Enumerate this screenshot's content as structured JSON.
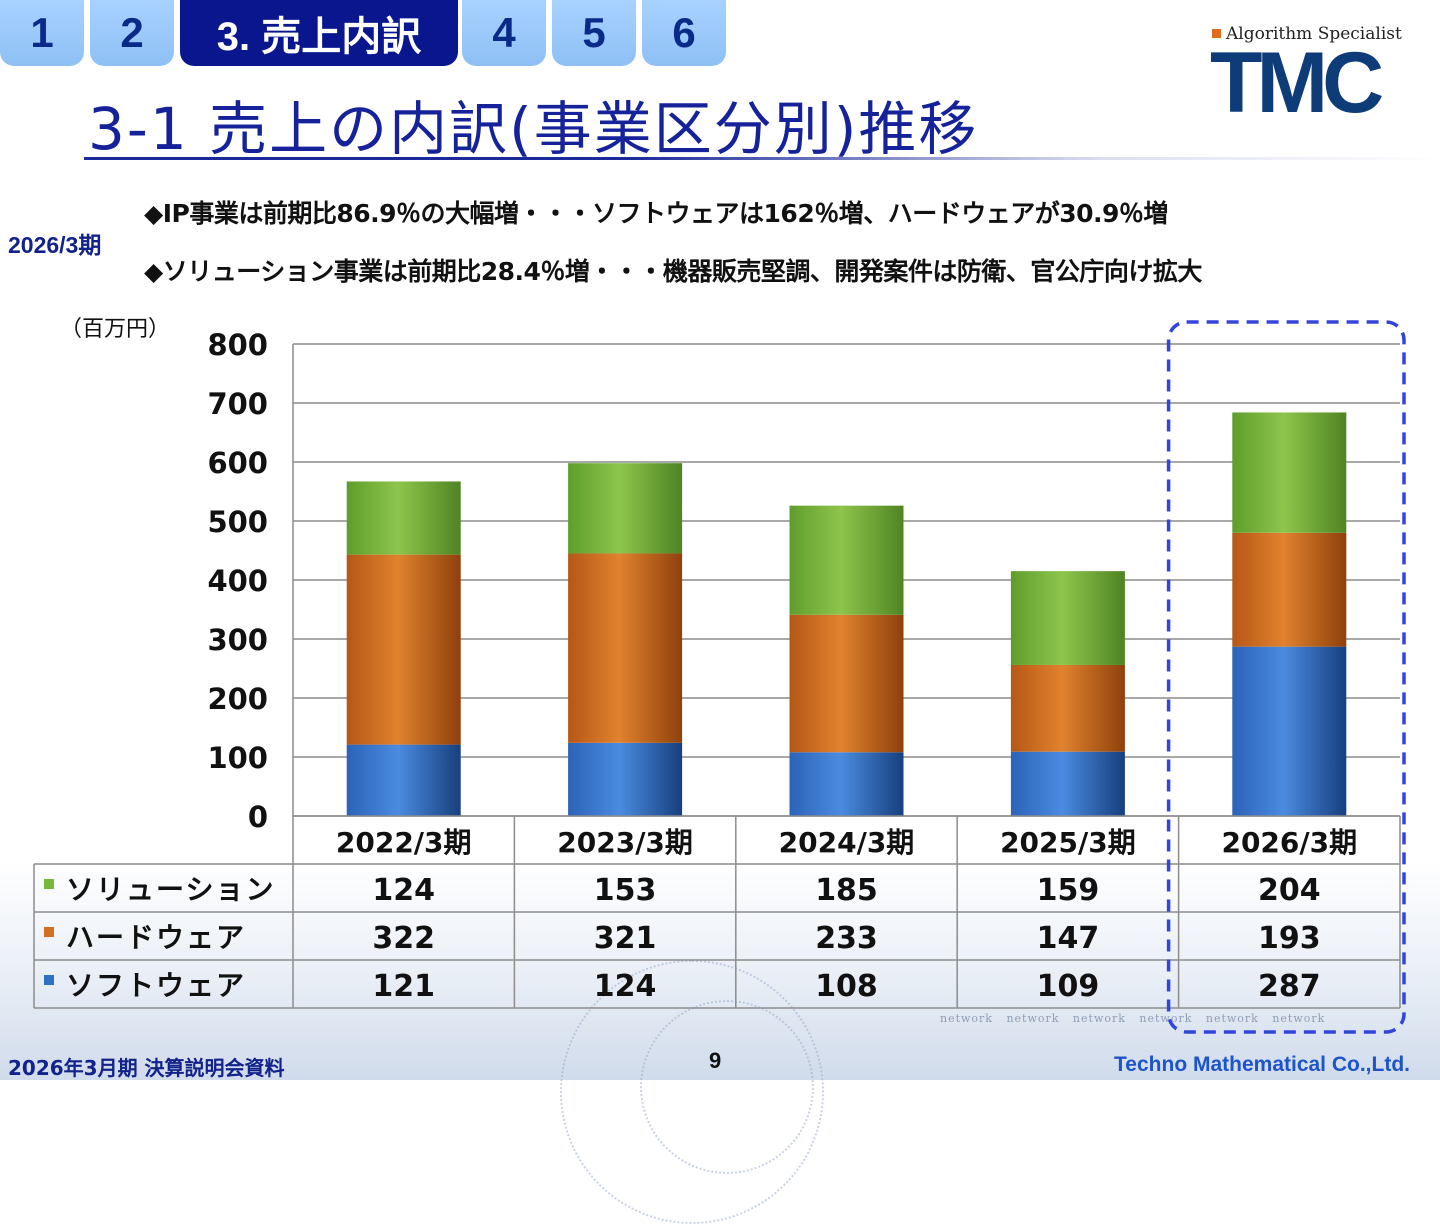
{
  "header": {
    "tabs": [
      {
        "label": "1",
        "active": false
      },
      {
        "label": "2",
        "active": false
      },
      {
        "label": "3. 売上内訳",
        "active": true
      },
      {
        "label": "4",
        "active": false
      },
      {
        "label": "5",
        "active": false
      },
      {
        "label": "6",
        "active": false
      }
    ],
    "logo_tagline": "Algorithm Specialist",
    "logo_name": "TMC"
  },
  "title": "3-1  売上の内訳(事業区分別)推移",
  "period_tag": "2026/3期",
  "bullets": [
    "◆IP事業は前期比86.9％の大幅増・・・ソフトウェアは162％増、ハードウェアが30.9％増",
    "◆ソリューション事業は前期比28.4％増・・・機器販売堅調、開発案件は防衛、官公庁向け拡大"
  ],
  "chart_data": {
    "type": "bar",
    "stacked": true,
    "unit_label": "（百万円）",
    "categories": [
      "2022/3期",
      "2023/3期",
      "2024/3期",
      "2025/3期",
      "2026/3期"
    ],
    "series": [
      {
        "name": "ソフトウェア",
        "values": [
          121,
          124,
          108,
          109,
          287
        ],
        "color": "#2f6fc4"
      },
      {
        "name": "ハードウェア",
        "values": [
          322,
          321,
          233,
          147,
          193
        ],
        "color": "#d2701f"
      },
      {
        "name": "ソリューション",
        "values": [
          124,
          153,
          185,
          159,
          204
        ],
        "color": "#78b83c"
      }
    ],
    "table_row_order": [
      "ソリューション",
      "ハードウェア",
      "ソフトウェア"
    ],
    "yticks": [
      0,
      100,
      200,
      300,
      400,
      500,
      600,
      700,
      800
    ],
    "ylim": [
      0,
      800
    ],
    "grid": true,
    "highlight_category": "2026/3期",
    "highlight_color": "#3344dd"
  },
  "footer": {
    "left": "2026年3月期 決算説明会資料",
    "page": "9",
    "right": "Techno Mathematical Co.,Ltd."
  }
}
